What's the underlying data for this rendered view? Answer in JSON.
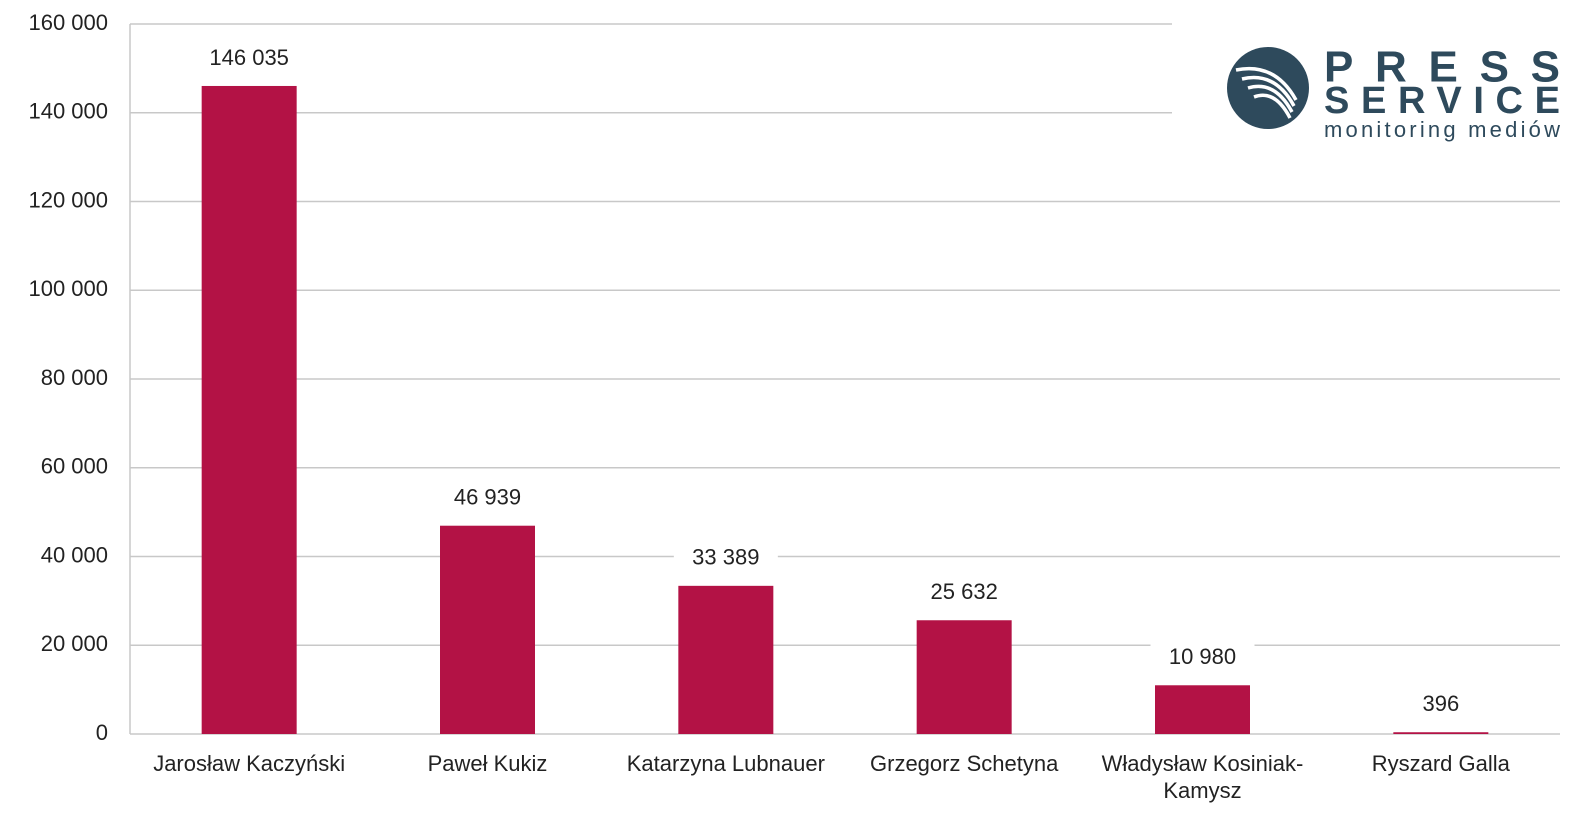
{
  "chart_data": {
    "type": "bar",
    "categories": [
      "Jarosław Kaczyński",
      "Paweł Kukiz",
      "Katarzyna Lubnauer",
      "Grzegorz Schetyna",
      "Władysław Kosiniak-Kamysz",
      "Ryszard Galla"
    ],
    "values": [
      146035,
      46939,
      33389,
      25632,
      10980,
      396
    ],
    "value_labels": [
      "146 035",
      "46 939",
      "33 389",
      "25 632",
      "10 980",
      "396"
    ],
    "color": "#b31245",
    "ylim": [
      0,
      160000
    ],
    "yticks": [
      0,
      {
        "value": 20000,
        "label": "20 000"
      },
      {
        "value": 40000,
        "label": "40 000"
      },
      {
        "value": 60000,
        "label": "60 000"
      },
      {
        "value": 80000,
        "label": "80 000"
      },
      {
        "value": 100000,
        "label": "100 000"
      },
      {
        "value": 120000,
        "label": "120 000"
      },
      {
        "value": 140000,
        "label": "140 000"
      },
      {
        "value": 160000,
        "label": "160 000"
      }
    ],
    "grid": true
  },
  "logo": {
    "line1": "PRESS",
    "line2": "SERVICE",
    "line3": "monitoring mediów"
  }
}
